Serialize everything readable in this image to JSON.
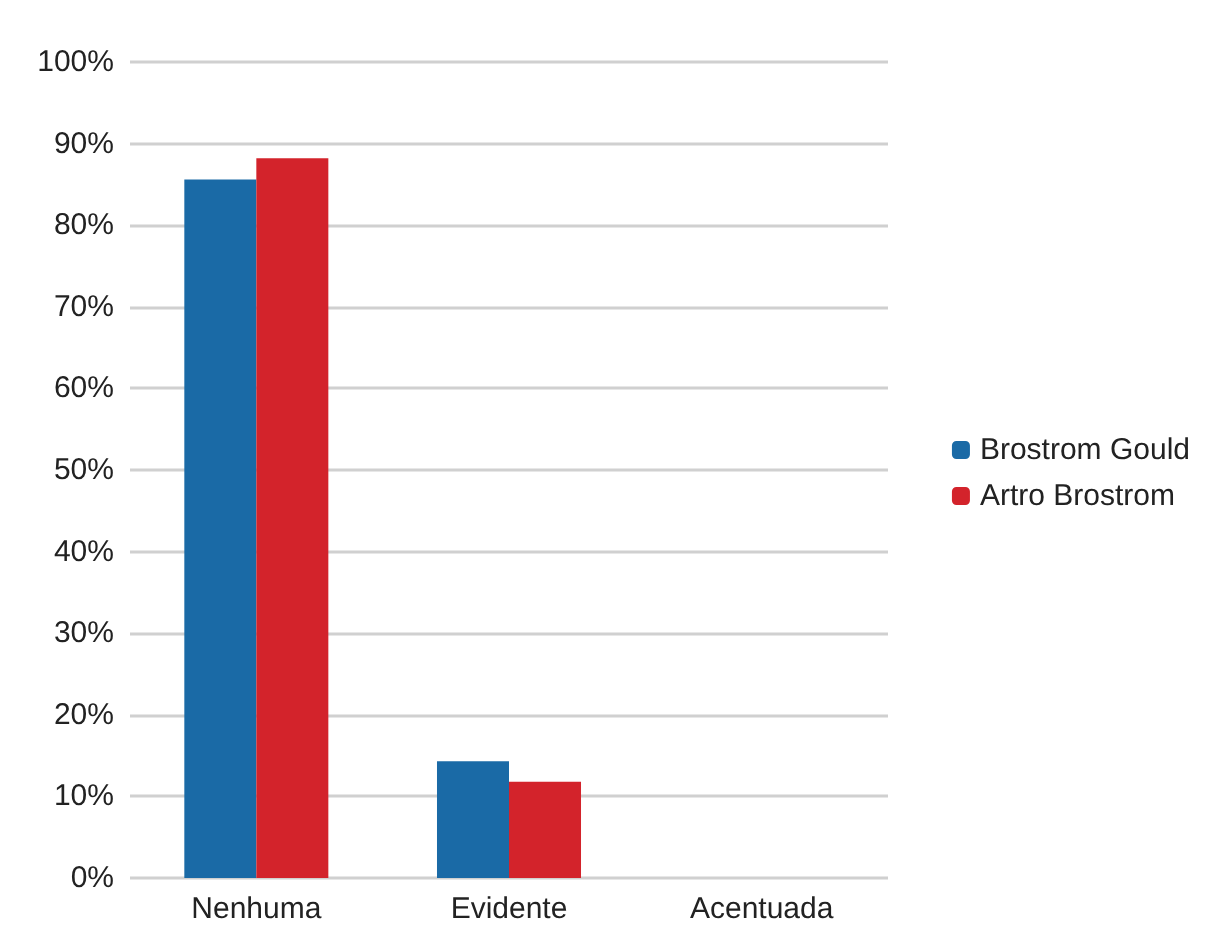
{
  "chart_data": {
    "type": "bar",
    "categories": [
      "Nenhuma",
      "Evidente",
      "Acentuada"
    ],
    "series": [
      {
        "name": "Brostrom Gould",
        "color": "#1a6aa6",
        "values": [
          85.6,
          14.3,
          0
        ]
      },
      {
        "name": "Artro Brostrom",
        "color": "#d3232b",
        "values": [
          88.2,
          11.8,
          0
        ]
      }
    ],
    "ylim": [
      0,
      100
    ],
    "yticks": [
      {
        "value": 0,
        "label": "0%"
      },
      {
        "value": 10,
        "label": "10%"
      },
      {
        "value": 20,
        "label": "20%"
      },
      {
        "value": 30,
        "label": "30%"
      },
      {
        "value": 40,
        "label": "40%"
      },
      {
        "value": 50,
        "label": "50%"
      },
      {
        "value": 60,
        "label": "60%"
      },
      {
        "value": 70,
        "label": "70%"
      },
      {
        "value": 80,
        "label": "80%"
      },
      {
        "value": 90,
        "label": "90%"
      },
      {
        "value": 100,
        "label": "100%"
      }
    ],
    "grid": "y",
    "legend": "right"
  }
}
